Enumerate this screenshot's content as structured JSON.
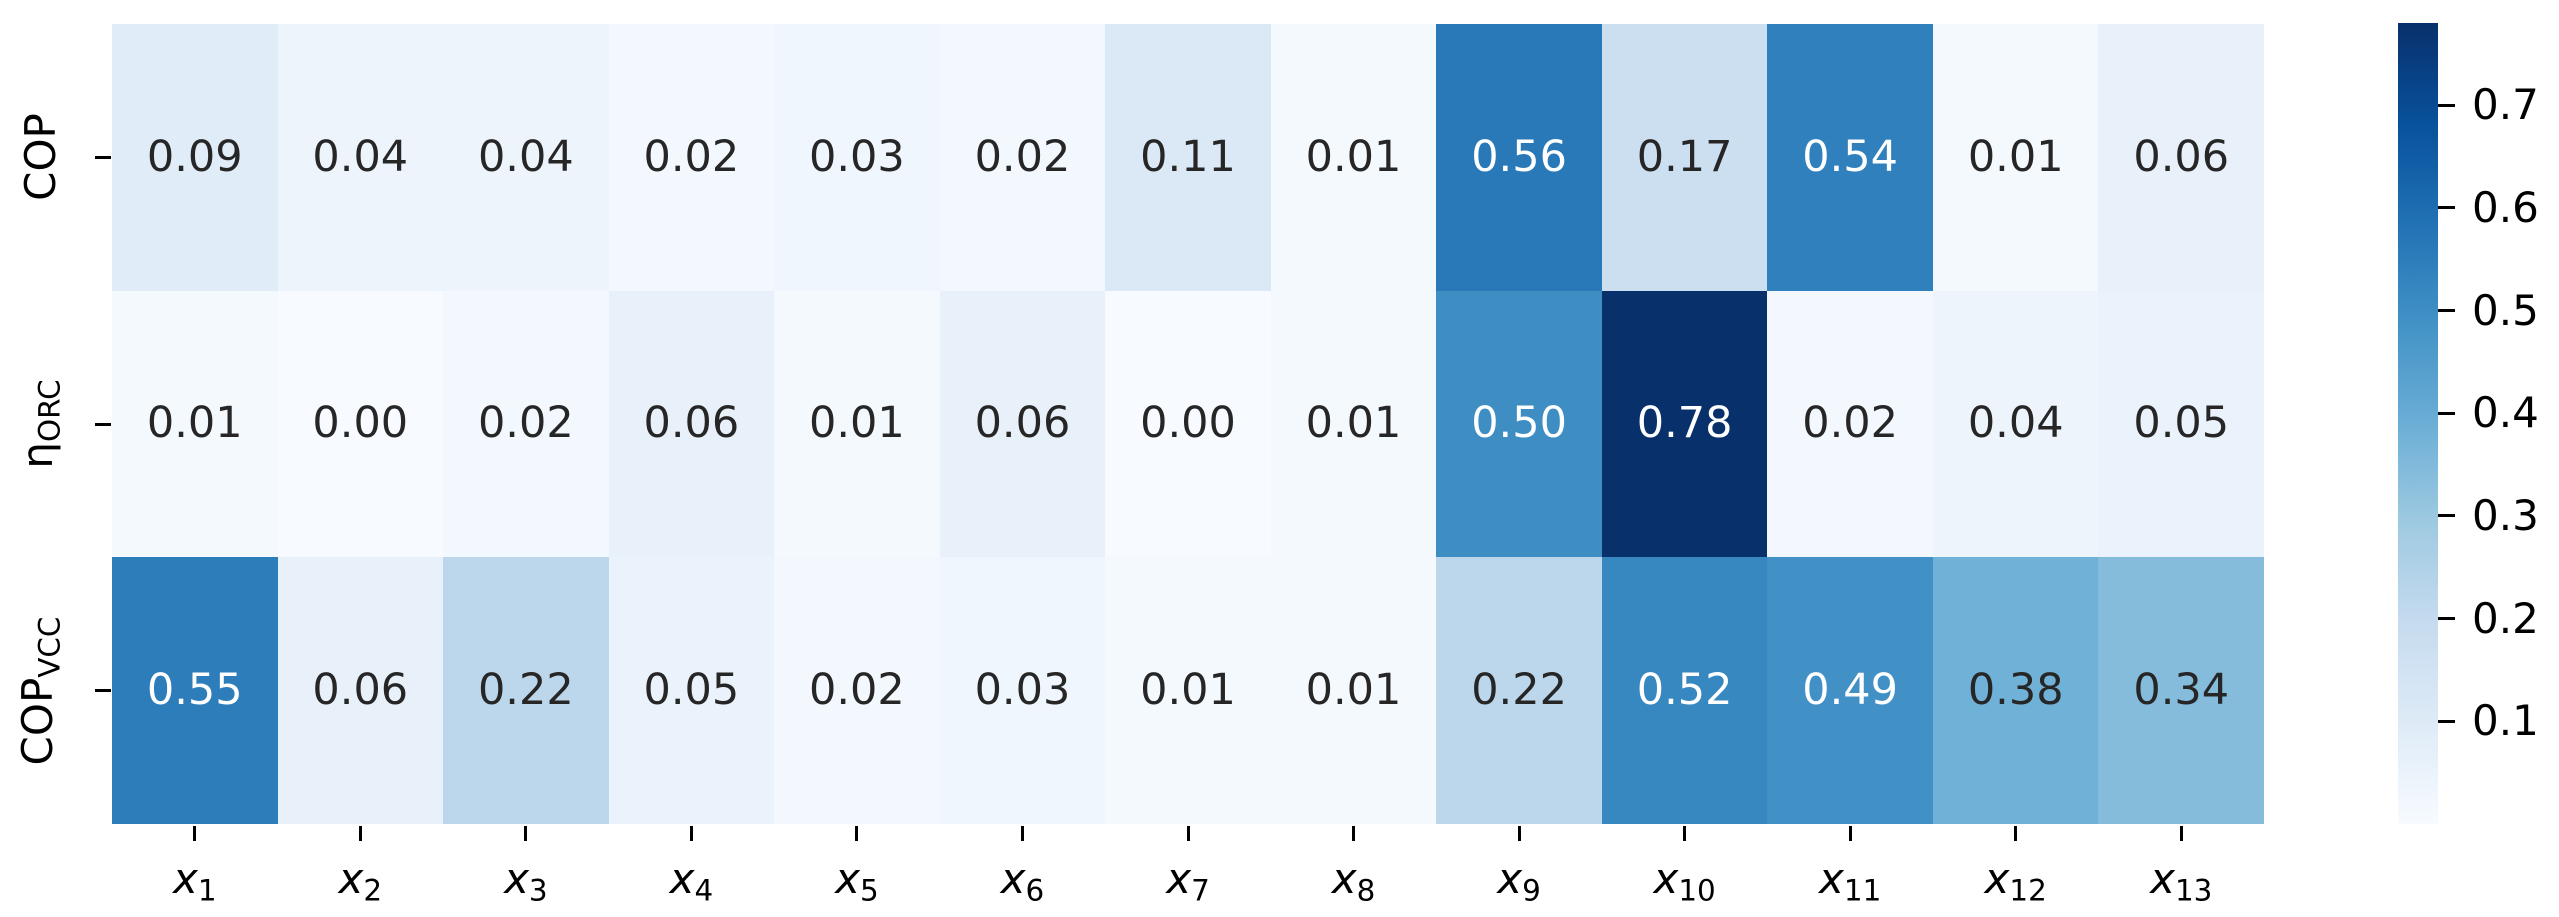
{
  "chart_data": {
    "type": "heatmap",
    "title": "",
    "colormap": "Blues",
    "colormap_stops": [
      "#f7fbff",
      "#deebf7",
      "#c6dbef",
      "#9ecae1",
      "#6baed6",
      "#4292c6",
      "#2171b5",
      "#08519c",
      "#08306b"
    ],
    "vmin": 0.0,
    "vmax": 0.78,
    "grid": false,
    "legend_position": "colorbar-right",
    "rows": [
      {
        "label": "COP",
        "sub": ""
      },
      {
        "label": "η",
        "sub": "ORC"
      },
      {
        "label": "COP",
        "sub": "VCC"
      }
    ],
    "columns": [
      {
        "label": "x",
        "sub": "1"
      },
      {
        "label": "x",
        "sub": "2"
      },
      {
        "label": "x",
        "sub": "3"
      },
      {
        "label": "x",
        "sub": "4"
      },
      {
        "label": "x",
        "sub": "5"
      },
      {
        "label": "x",
        "sub": "6"
      },
      {
        "label": "x",
        "sub": "7"
      },
      {
        "label": "x",
        "sub": "8"
      },
      {
        "label": "x",
        "sub": "9"
      },
      {
        "label": "x",
        "sub": "10"
      },
      {
        "label": "x",
        "sub": "11"
      },
      {
        "label": "x",
        "sub": "12"
      },
      {
        "label": "x",
        "sub": "13"
      }
    ],
    "values": [
      [
        0.09,
        0.04,
        0.04,
        0.02,
        0.03,
        0.02,
        0.11,
        0.01,
        0.56,
        0.17,
        0.54,
        0.01,
        0.06
      ],
      [
        0.01,
        0.0,
        0.02,
        0.06,
        0.01,
        0.06,
        0.0,
        0.01,
        0.5,
        0.78,
        0.02,
        0.04,
        0.05
      ],
      [
        0.55,
        0.06,
        0.22,
        0.05,
        0.02,
        0.03,
        0.01,
        0.01,
        0.22,
        0.52,
        0.49,
        0.38,
        0.34
      ]
    ],
    "annotation_decimals": 2,
    "annotation_color_dark": "#262626",
    "annotation_color_light": "#ffffff",
    "colorbar_ticks": [
      0.7,
      0.6,
      0.5,
      0.4,
      0.3,
      0.2,
      0.1
    ],
    "colorbar_tick_decimals": 1
  }
}
